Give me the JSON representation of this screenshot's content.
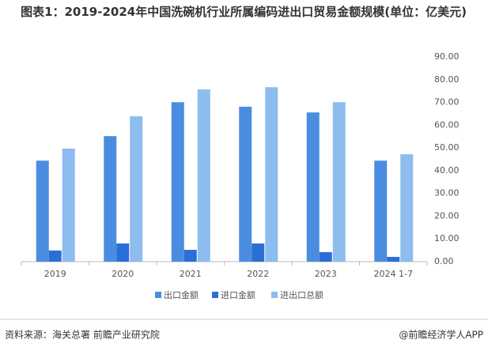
{
  "chart_data": {
    "type": "bar",
    "title": "图表1：2019-2024年中国洗碗机行业所属编码进出口贸易金额规模(单位：亿美元)",
    "categories": [
      "2019",
      "2020",
      "2021",
      "2022",
      "2023",
      "2024 1-7"
    ],
    "series": [
      {
        "name": "出口金额",
        "color": "#4a8de0",
        "values": [
          44.4,
          55.2,
          70.1,
          68.1,
          65.6,
          44.4
        ]
      },
      {
        "name": "进口金额",
        "color": "#2a6fd6",
        "values": [
          4.9,
          8.0,
          5.2,
          8.0,
          4.2,
          2.1
        ]
      },
      {
        "name": "进出口总额",
        "color": "#8dbcef",
        "values": [
          49.7,
          63.9,
          75.7,
          76.7,
          70.1,
          47.2
        ]
      }
    ],
    "ylim": [
      0,
      90
    ],
    "yticks": [
      {
        "value": 0,
        "label": "0.00"
      },
      {
        "value": 10,
        "label": "10.00"
      },
      {
        "value": 20,
        "label": "20.00"
      },
      {
        "value": 30,
        "label": "30.00"
      },
      {
        "value": 40,
        "label": "40.00"
      },
      {
        "value": 50,
        "label": "50.00"
      },
      {
        "value": 60,
        "label": "60.00"
      },
      {
        "value": 70,
        "label": "70.00"
      },
      {
        "value": 80,
        "label": "80.00"
      },
      {
        "value": 90,
        "label": "90.00"
      }
    ],
    "grid": false,
    "source": "资料来源：海关总署 前瞻产业研究院",
    "credit": "@前瞻经济学人APP"
  }
}
